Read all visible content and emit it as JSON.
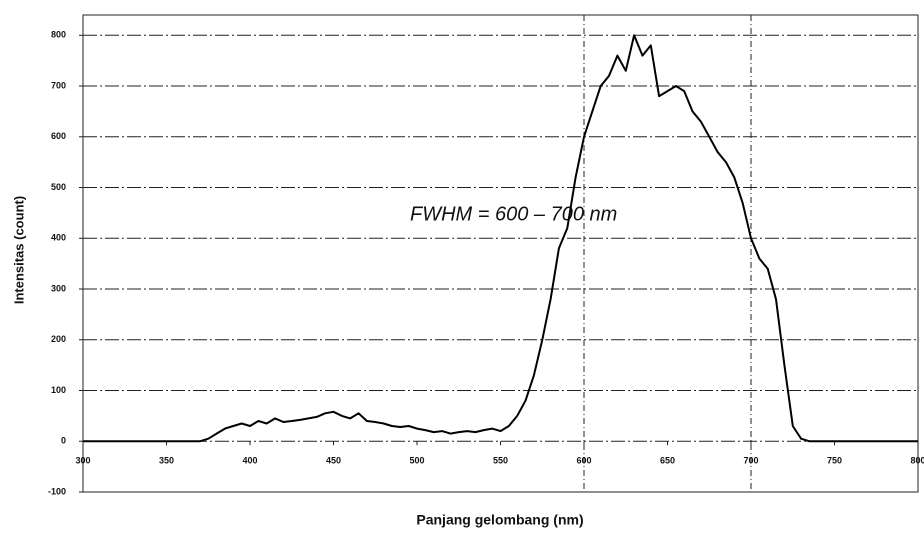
{
  "chart_data": {
    "type": "line",
    "annotation": "FWHM = 600 – 700 nm",
    "x_label": "Panjang gelombang (nm)",
    "y_label": "Intensitas (count)",
    "x": [
      300,
      305,
      310,
      315,
      320,
      325,
      330,
      335,
      340,
      345,
      350,
      355,
      360,
      365,
      370,
      375,
      380,
      385,
      390,
      395,
      400,
      405,
      410,
      415,
      420,
      425,
      430,
      435,
      440,
      445,
      450,
      455,
      460,
      465,
      470,
      475,
      480,
      485,
      490,
      495,
      500,
      505,
      510,
      515,
      520,
      525,
      530,
      535,
      540,
      545,
      550,
      555,
      560,
      565,
      570,
      575,
      580,
      585,
      590,
      595,
      600,
      605,
      610,
      615,
      620,
      625,
      630,
      635,
      640,
      645,
      650,
      655,
      660,
      665,
      670,
      675,
      680,
      685,
      690,
      695,
      700,
      705,
      710,
      715,
      720,
      725,
      730,
      735,
      740,
      745,
      750,
      755,
      760,
      765,
      770,
      775,
      780,
      785,
      790,
      795,
      800
    ],
    "values": [
      0,
      0,
      0,
      0,
      0,
      0,
      0,
      0,
      0,
      0,
      0,
      0,
      0,
      0,
      0,
      5,
      15,
      25,
      30,
      35,
      30,
      40,
      35,
      45,
      38,
      40,
      42,
      45,
      48,
      55,
      58,
      50,
      45,
      55,
      40,
      38,
      35,
      30,
      28,
      30,
      25,
      22,
      18,
      20,
      15,
      18,
      20,
      18,
      22,
      25,
      20,
      30,
      50,
      80,
      130,
      200,
      280,
      380,
      420,
      520,
      600,
      650,
      700,
      720,
      760,
      730,
      800,
      760,
      780,
      680,
      690,
      700,
      690,
      650,
      630,
      600,
      570,
      550,
      520,
      470,
      400,
      360,
      340,
      280,
      150,
      30,
      5,
      0,
      0,
      0,
      0,
      0,
      0,
      0,
      0,
      0,
      0,
      0,
      0,
      0,
      0
    ],
    "color": "#000000",
    "xlim": [
      300,
      800
    ],
    "xticks": [
      300,
      350,
      400,
      450,
      500,
      550,
      600,
      650,
      700,
      750,
      800
    ],
    "ylim": [
      -100,
      840
    ],
    "yticks": [
      -100,
      0,
      100,
      200,
      300,
      400,
      500,
      600,
      700,
      800
    ],
    "vlines": [
      600,
      700
    ],
    "grid": true
  }
}
